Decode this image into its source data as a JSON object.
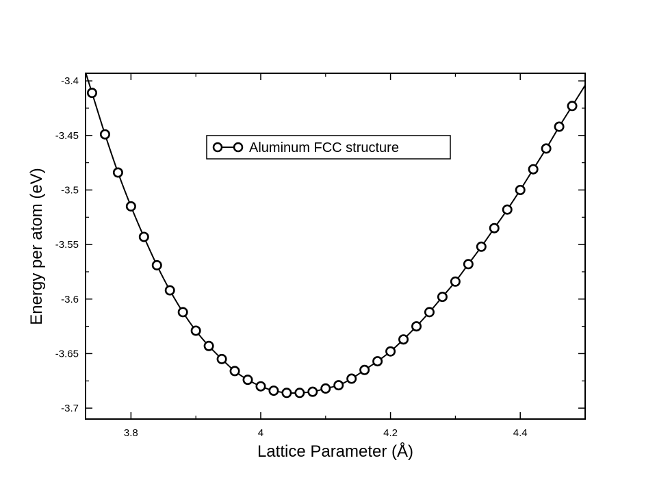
{
  "chart_data": {
    "type": "line",
    "xlabel": "Lattice Parameter (Å)",
    "ylabel": "Energy per atom (eV)",
    "xlim": [
      3.73,
      4.5
    ],
    "ylim": [
      -3.71,
      -3.393
    ],
    "xticks": [
      3.8,
      4.0,
      4.2,
      4.4
    ],
    "xtick_labels": [
      "3.8",
      "4",
      "4.2",
      "4.4"
    ],
    "yticks": [
      -3.4,
      -3.45,
      -3.5,
      -3.55,
      -3.6,
      -3.65,
      -3.7
    ],
    "ytick_labels": [
      "-3.4",
      "-3.45",
      "-3.5",
      "-3.55",
      "-3.6",
      "-3.65",
      "-3.7"
    ],
    "grid": false,
    "legend_position": "top-center",
    "marker": "open-circle",
    "line_color": "#000000",
    "series": [
      {
        "name": "Aluminum FCC structure",
        "x": [
          3.74,
          3.76,
          3.78,
          3.8,
          3.82,
          3.84,
          3.86,
          3.88,
          3.9,
          3.92,
          3.94,
          3.96,
          3.98,
          4.0,
          4.02,
          4.04,
          4.06,
          4.08,
          4.1,
          4.12,
          4.14,
          4.16,
          4.18,
          4.2,
          4.22,
          4.24,
          4.26,
          4.28,
          4.3,
          4.32,
          4.34,
          4.36,
          4.38,
          4.4,
          4.42,
          4.44,
          4.46,
          4.48
        ],
        "y": [
          -3.411,
          -3.449,
          -3.484,
          -3.515,
          -3.543,
          -3.569,
          -3.592,
          -3.612,
          -3.629,
          -3.643,
          -3.655,
          -3.666,
          -3.674,
          -3.68,
          -3.684,
          -3.686,
          -3.686,
          -3.685,
          -3.682,
          -3.679,
          -3.673,
          -3.665,
          -3.657,
          -3.648,
          -3.637,
          -3.625,
          -3.612,
          -3.598,
          -3.584,
          -3.568,
          -3.552,
          -3.535,
          -3.518,
          -3.5,
          -3.481,
          -3.462,
          -3.442,
          -3.423
        ]
      }
    ]
  }
}
